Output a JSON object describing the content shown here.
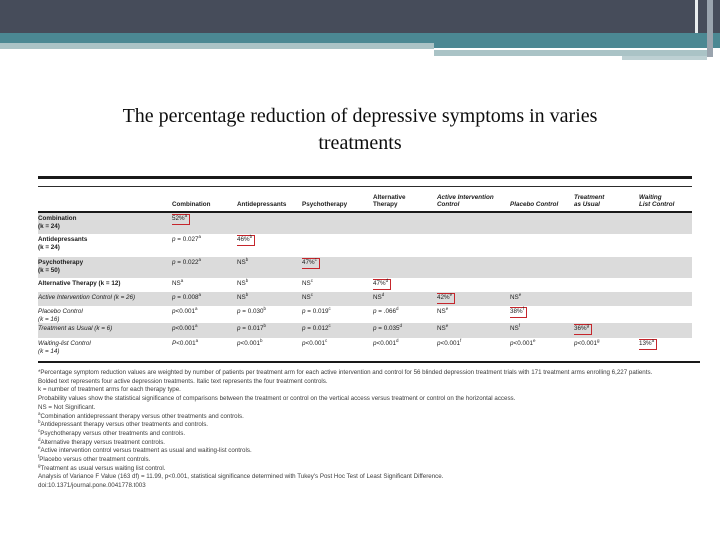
{
  "title": {
    "line1": "The percentage reduction of depressive symptoms in varies",
    "line2": "treatments"
  },
  "colors": {
    "header_dark": "#464c5a",
    "header_teal": "#4b8893",
    "header_sage": "#aac3c6",
    "row_shade": "#dbdbdb",
    "highlight_red": "#c5262c"
  },
  "table": {
    "columns": [
      {
        "label": "Combination",
        "group": "treatment"
      },
      {
        "label": "Antidepressants",
        "group": "treatment"
      },
      {
        "label": "Psychotherapy",
        "group": "treatment"
      },
      {
        "label": "Alternative\nTherapy",
        "group": "treatment"
      },
      {
        "label": "Active Intervention\nControl",
        "group": "control"
      },
      {
        "label": "Placebo Control",
        "group": "control"
      },
      {
        "label": "Treatment\nas Usual",
        "group": "control"
      },
      {
        "label": "Waiting\nList Control",
        "group": "control"
      }
    ],
    "rows": [
      {
        "label": "Combination\n(k = 24)",
        "group": "treatment",
        "shaded": true,
        "boxed": 0,
        "cells": [
          "52%^a",
          "",
          "",
          "",
          "",
          "",
          "",
          ""
        ]
      },
      {
        "label": "Antidepressants\n(k = 24)",
        "group": "treatment",
        "shaded": false,
        "boxed": 1,
        "cells": [
          "p = 0.027^a",
          "46%^b",
          "",
          "",
          "",
          "",
          "",
          ""
        ]
      },
      {
        "label": "Psychotherapy\n(k = 50)",
        "group": "treatment",
        "shaded": true,
        "boxed": 2,
        "cells": [
          "p = 0.022^a",
          "NS^b",
          "47%^c",
          "",
          "",
          "",
          "",
          ""
        ]
      },
      {
        "label": "Alternative Therapy (k = 12)",
        "group": "treatment",
        "shaded": false,
        "boxed": 3,
        "cells": [
          "NS^a",
          "NS^b",
          "NS^c",
          "47%^d",
          "",
          "",
          "",
          ""
        ]
      },
      {
        "label": "Active Intervention Control (k = 26)",
        "group": "control",
        "shaded": true,
        "boxed": 4,
        "cells": [
          "p = 0.008^a",
          "NS^b",
          "NS^c",
          "NS^d",
          "42%^e",
          "NS^e",
          "",
          ""
        ]
      },
      {
        "label": "Placebo Control\n(k = 16)",
        "group": "control",
        "shaded": false,
        "boxed": 5,
        "cells": [
          "p<0.001^a",
          "p = 0.030^b",
          "p = 0.019^c",
          "p = .066^d",
          "NS^e",
          "38%^f",
          "",
          ""
        ]
      },
      {
        "label": "Treatment as Usual (k = 6)",
        "group": "control",
        "shaded": true,
        "boxed": 6,
        "cells": [
          "p<0.001^a",
          "p = 0.017^b",
          "p = 0.012^c",
          "p = 0.035^d",
          "NS^e",
          "NS^f",
          "36%^g",
          ""
        ]
      },
      {
        "label": "Waiting-list Control\n(k = 14)",
        "group": "control",
        "shaded": false,
        "boxed": 7,
        "cells": [
          "P<0.001^a",
          "p<0.001^b",
          "p<0.001^c",
          "p<0.001^d",
          "p<0.001^f",
          "p<0.001^e",
          "p<0.001^g",
          "13%^a"
        ]
      }
    ]
  },
  "footnotes": [
    {
      "sup": "",
      "text": "*Percentage symptom reduction values are weighted by number of patients per treatment arm for each active intervention and control for 56 blinded depression treatment trials with 171 treatment arms enrolling 6,227 patients."
    },
    {
      "sup": "",
      "text": "Bolded text represents four active depression treatments. Italic text represents the four treatment controls."
    },
    {
      "sup": "",
      "text": "k = number of treatment arms for each therapy type."
    },
    {
      "sup": "",
      "text": "Probability values show the statistical significance of comparisons between the treatment or control on the vertical access versus treatment or control on the horizontal access."
    },
    {
      "sup": "",
      "text": "NS = Not Significant."
    },
    {
      "sup": "a",
      "text": "Combination antidepressant therapy versus other treatments and controls."
    },
    {
      "sup": "b",
      "text": "Antidepressant therapy versus other treatments and controls."
    },
    {
      "sup": "c",
      "text": "Psychotherapy versus other treatments and controls."
    },
    {
      "sup": "d",
      "text": "Alternative therapy versus treatment controls."
    },
    {
      "sup": "e",
      "text": "Active intervention control versus treatment as usual and waiting-list controls."
    },
    {
      "sup": "f",
      "text": "Placebo versus other treatment controls."
    },
    {
      "sup": "g",
      "text": "Treatment as usual versus waiting list control."
    },
    {
      "sup": "",
      "text": "Analysis of Variance F Value (163 df) = 11.99, p<0.001, statistical significance determined with Tukey's Post Hoc Test of Least Significant Difference."
    },
    {
      "sup": "",
      "text": "doi:10.1371/journal.pone.0041778.t003"
    }
  ]
}
